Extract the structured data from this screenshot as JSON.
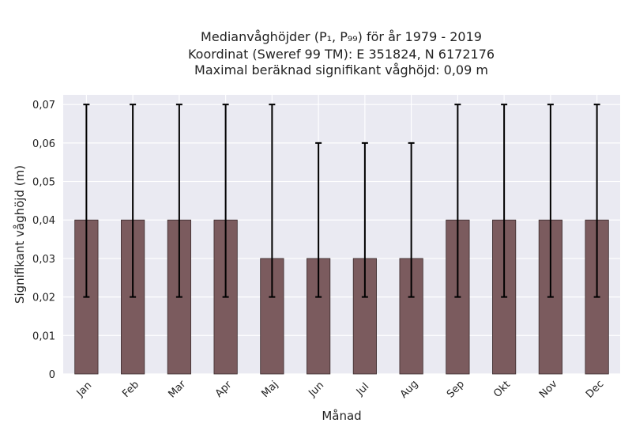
{
  "chart_data": {
    "type": "bar",
    "title_lines": [
      "Medianvåghöjder (P₁, P₉₉) för år 1979 - 2019",
      "Koordinat (Sweref 99 TM): E 351824, N 6172176",
      "Maximal beräknad signifikant våghöjd: 0,09 m"
    ],
    "xlabel": "Månad",
    "ylabel": "Signifikant våghöjd (m)",
    "categories": [
      "Jan",
      "Feb",
      "Mar",
      "Apr",
      "Maj",
      "Jun",
      "Jul",
      "Aug",
      "Sep",
      "Okt",
      "Nov",
      "Dec"
    ],
    "series": [
      {
        "values": [
          0.04,
          0.04,
          0.04,
          0.04,
          0.03,
          0.03,
          0.03,
          0.03,
          0.04,
          0.04,
          0.04,
          0.04
        ],
        "lower": [
          0.02,
          0.02,
          0.02,
          0.02,
          0.02,
          0.02,
          0.02,
          0.02,
          0.02,
          0.02,
          0.02,
          0.02
        ],
        "upper": [
          0.07,
          0.07,
          0.07,
          0.07,
          0.07,
          0.06,
          0.06,
          0.06,
          0.07,
          0.07,
          0.07,
          0.07
        ],
        "color": "#7b5b5e"
      }
    ],
    "ylim": [
      0,
      0.0725
    ],
    "yticks": [
      0,
      0.01,
      0.02,
      0.03,
      0.04,
      0.05,
      0.06,
      0.07
    ],
    "ytick_labels": [
      "0",
      "0,01",
      "0,02",
      "0,03",
      "0,04",
      "0,05",
      "0,06",
      "0,07"
    ],
    "grid": true,
    "colors": {
      "plot_background": "#eaeaf2",
      "grid": "#ffffff",
      "bar": "#7b5b5e",
      "bar_edge": "#3a2a2c",
      "error_bar": "#000000"
    }
  }
}
